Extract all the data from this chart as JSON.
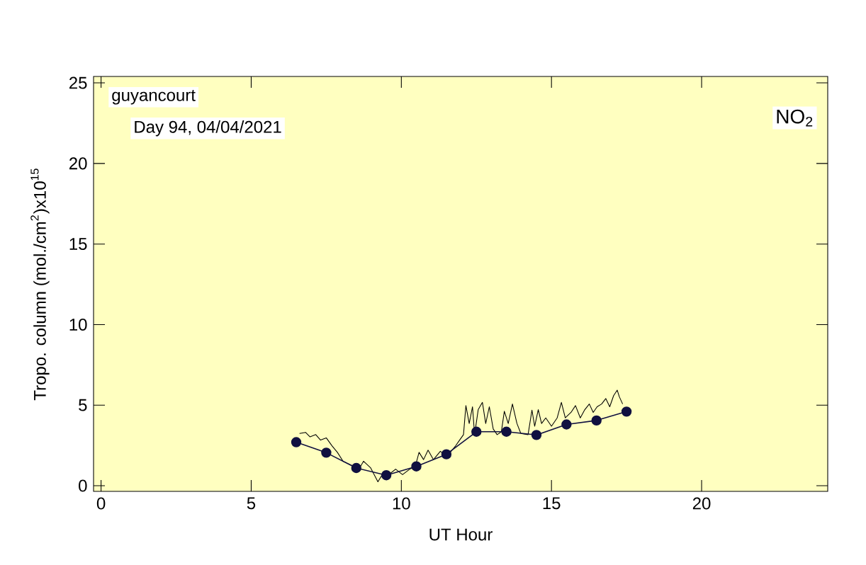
{
  "chart_data": {
    "type": "line",
    "xlabel": "UT Hour",
    "ylabel": "Tropo. column (mol./cm$^{2}$)x10$^{15}$",
    "annotations": [
      "guyancourt",
      "Day 94, 04/04/2021",
      "NO$_{2}$"
    ],
    "xlim": [
      -0.25,
      24.2
    ],
    "ylim": [
      -0.35,
      25.4
    ],
    "xticks": [
      0,
      5,
      10,
      15,
      20
    ],
    "yticks": [
      0,
      5,
      10,
      15,
      20,
      25
    ],
    "grid": false,
    "series": [
      {
        "color": "#000000",
        "marker": "none",
        "x": [
          6.61,
          6.81,
          6.96,
          7.15,
          7.31,
          7.5,
          7.69,
          7.87,
          8.06,
          8.33,
          8.61,
          8.74,
          8.98,
          9.22,
          9.41,
          9.63,
          9.81,
          10.04,
          10.28,
          10.46,
          10.59,
          10.74,
          10.89,
          11.07,
          11.3,
          11.48,
          11.63,
          11.81,
          11.94,
          12.07,
          12.15,
          12.26,
          12.37,
          12.44,
          12.56,
          12.7,
          12.81,
          12.93,
          13.06,
          13.19,
          13.33,
          13.43,
          13.56,
          13.7,
          13.85,
          13.98,
          14.22,
          14.35,
          14.44,
          14.56,
          14.67,
          14.81,
          15.0,
          15.19,
          15.33,
          15.46,
          15.65,
          15.8,
          15.96,
          16.11,
          16.26,
          16.39,
          16.52,
          16.67,
          16.81,
          16.94,
          17.07,
          17.19,
          17.26,
          17.37
        ],
        "values": [
          3.24,
          3.31,
          3.03,
          3.17,
          2.83,
          2.97,
          2.48,
          2.07,
          1.52,
          1.28,
          1.1,
          1.52,
          1.1,
          0.24,
          0.83,
          0.76,
          1.03,
          0.69,
          1.03,
          1.17,
          2.07,
          1.62,
          2.21,
          1.62,
          2.14,
          1.86,
          2.07,
          2.48,
          2.83,
          3.17,
          4.97,
          3.86,
          4.9,
          3.17,
          4.72,
          5.17,
          3.86,
          4.9,
          3.52,
          3.17,
          3.34,
          4.62,
          3.86,
          5.07,
          3.86,
          3.24,
          3.17,
          4.69,
          3.69,
          4.72,
          3.86,
          4.21,
          3.69,
          4.21,
          5.17,
          4.21,
          4.55,
          4.97,
          4.21,
          4.72,
          5.07,
          4.55,
          4.9,
          5.07,
          5.41,
          4.9,
          5.59,
          5.93,
          5.52,
          5.07
        ]
      },
      {
        "color": "#101040",
        "marker": "circle",
        "x": [
          6.5,
          7.5,
          8.5,
          9.5,
          10.5,
          11.5,
          12.5,
          13.5,
          14.5,
          15.5,
          16.5,
          17.5
        ],
        "values": [
          2.7,
          2.05,
          1.1,
          0.65,
          1.2,
          1.95,
          3.35,
          3.35,
          3.15,
          3.8,
          4.05,
          4.6
        ]
      }
    ]
  }
}
